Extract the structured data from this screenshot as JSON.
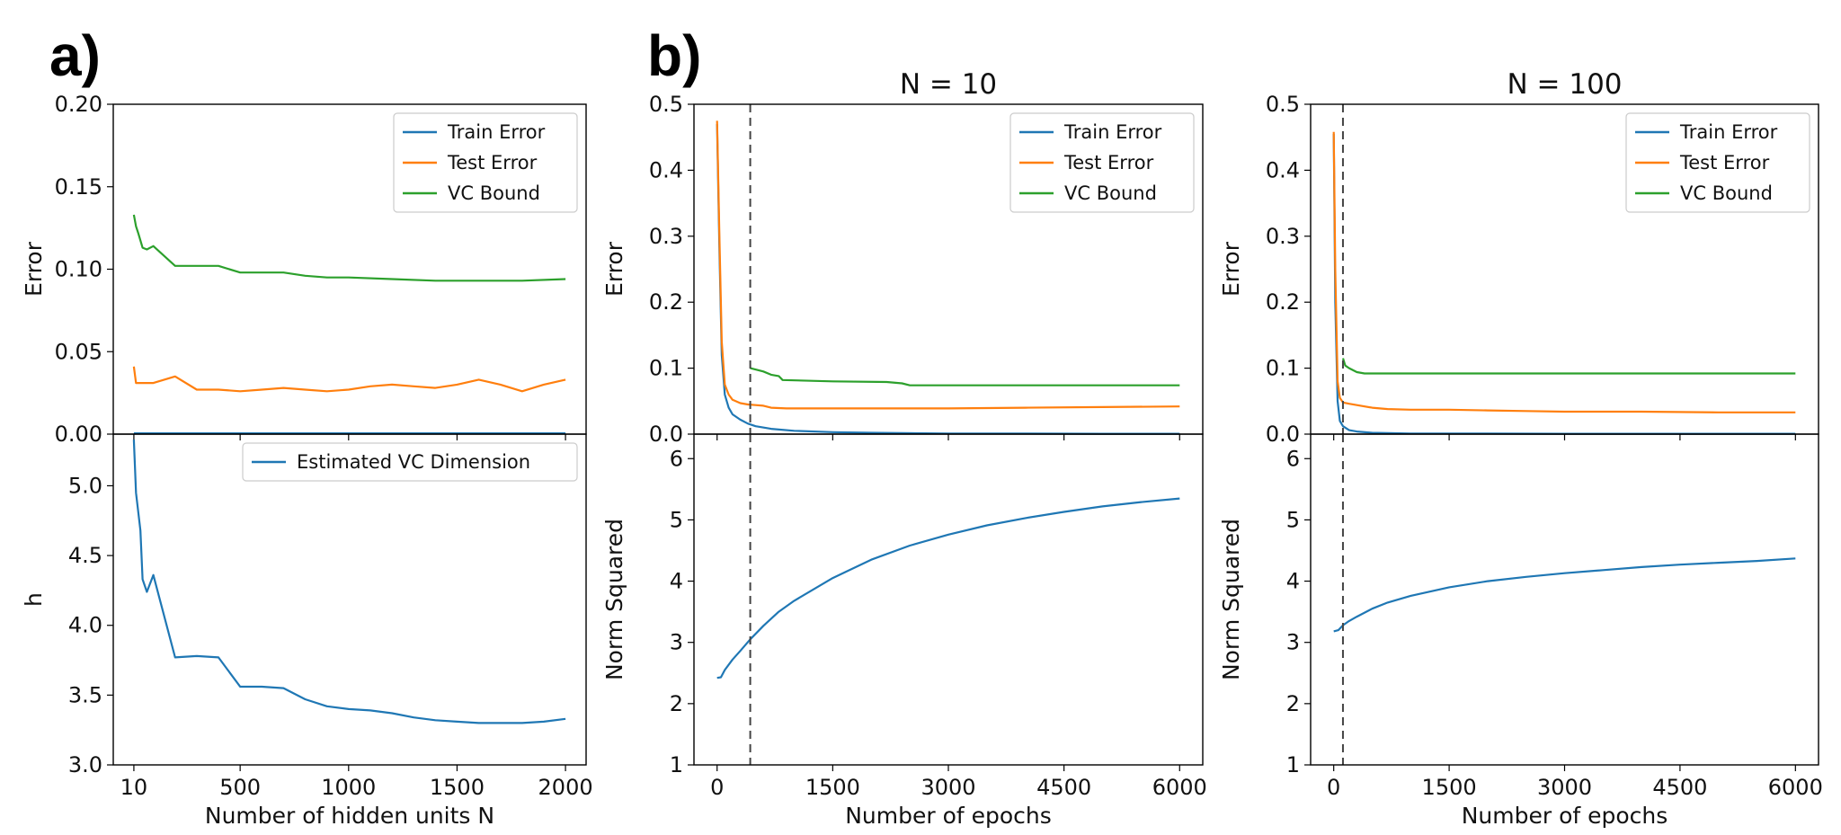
{
  "labels": {
    "panel_a": "a)",
    "panel_b": "b)"
  },
  "colors": {
    "train": "#1f77b4",
    "test": "#ff7f0e",
    "vc": "#2ca02c"
  },
  "chart_data": [
    {
      "id": "a_top",
      "type": "line",
      "title": "",
      "xlabel": "",
      "ylabel": "Error",
      "xlim": [
        -85,
        2095
      ],
      "ylim": [
        0.0,
        0.2
      ],
      "xticks": [
        10,
        500,
        1000,
        1500,
        2000
      ],
      "xtick_labels_shown": false,
      "yticks": [
        0.0,
        0.05,
        0.1,
        0.15,
        0.2
      ],
      "ytick_labels": [
        "0.00",
        "0.05",
        "0.10",
        "0.15",
        "0.20"
      ],
      "legend": "top-right",
      "series": [
        {
          "name": "Train Error",
          "color": "#1f77b4",
          "x": [
            10,
            2000
          ],
          "y": [
            0.0005,
            0.0005
          ]
        },
        {
          "name": "Test Error",
          "color": "#ff7f0e",
          "x": [
            10,
            20,
            50,
            100,
            200,
            300,
            400,
            500,
            600,
            700,
            800,
            900,
            1000,
            1100,
            1200,
            1300,
            1400,
            1500,
            1600,
            1700,
            1800,
            1900,
            2000
          ],
          "y": [
            0.041,
            0.031,
            0.031,
            0.031,
            0.035,
            0.027,
            0.027,
            0.026,
            0.027,
            0.028,
            0.027,
            0.026,
            0.027,
            0.029,
            0.03,
            0.029,
            0.028,
            0.03,
            0.033,
            0.03,
            0.026,
            0.03,
            0.033
          ]
        },
        {
          "name": "VC Bound",
          "color": "#2ca02c",
          "x": [
            10,
            20,
            30,
            50,
            70,
            100,
            200,
            300,
            400,
            500,
            700,
            800,
            900,
            1000,
            1200,
            1400,
            1600,
            1800,
            2000
          ],
          "y": [
            0.133,
            0.126,
            0.122,
            0.113,
            0.112,
            0.114,
            0.102,
            0.102,
            0.102,
            0.098,
            0.098,
            0.096,
            0.095,
            0.095,
            0.094,
            0.093,
            0.093,
            0.093,
            0.094
          ]
        }
      ]
    },
    {
      "id": "a_bottom",
      "type": "line",
      "title": "",
      "xlabel": "Number of hidden units N",
      "ylabel": "h",
      "xlim": [
        -85,
        2095
      ],
      "ylim": [
        3.0,
        5.37
      ],
      "xticks": [
        10,
        500,
        1000,
        1500,
        2000
      ],
      "xtick_labels": [
        "10",
        "500",
        "1000",
        "1500",
        "2000"
      ],
      "yticks": [
        3.0,
        3.5,
        4.0,
        4.5,
        5.0
      ],
      "ytick_labels": [
        "3.0",
        "3.5",
        "4.0",
        "4.5",
        "5.0"
      ],
      "legend": "top-right",
      "series": [
        {
          "name": "Estimated VC Dimension",
          "color": "#1f77b4",
          "x": [
            10,
            20,
            40,
            50,
            70,
            100,
            200,
            300,
            400,
            500,
            600,
            700,
            800,
            900,
            1000,
            1100,
            1200,
            1300,
            1400,
            1500,
            1600,
            1700,
            1800,
            1900,
            2000
          ],
          "y": [
            5.33,
            4.95,
            4.68,
            4.33,
            4.24,
            4.36,
            3.77,
            3.78,
            3.77,
            3.56,
            3.56,
            3.55,
            3.47,
            3.42,
            3.4,
            3.39,
            3.37,
            3.34,
            3.32,
            3.31,
            3.3,
            3.3,
            3.3,
            3.31,
            3.33
          ]
        }
      ]
    },
    {
      "id": "b10_top",
      "type": "line",
      "title": "N = 10",
      "xlabel": "",
      "ylabel": "Error",
      "xlim": [
        -300,
        6300
      ],
      "ylim": [
        0.0,
        0.5
      ],
      "xticks": [
        0,
        1500,
        3000,
        4500,
        6000
      ],
      "xtick_labels_shown": false,
      "yticks": [
        0.0,
        0.1,
        0.2,
        0.3,
        0.4,
        0.5
      ],
      "ytick_labels": [
        "0.0",
        "0.1",
        "0.2",
        "0.3",
        "0.4",
        "0.5"
      ],
      "vline_x": 430,
      "legend": "top-right",
      "series": [
        {
          "name": "Train Error",
          "color": "#1f77b4",
          "x": [
            0,
            30,
            60,
            100,
            150,
            200,
            300,
            400,
            500,
            700,
            1000,
            1500,
            2000,
            3000,
            4000,
            5000,
            6000
          ],
          "y": [
            0.47,
            0.28,
            0.12,
            0.06,
            0.04,
            0.03,
            0.022,
            0.016,
            0.012,
            0.008,
            0.005,
            0.003,
            0.002,
            0.001,
            0.0008,
            0.0006,
            0.0005
          ]
        },
        {
          "name": "Test Error",
          "color": "#ff7f0e",
          "x": [
            0,
            30,
            60,
            100,
            150,
            200,
            300,
            400,
            500,
            600,
            700,
            900,
            1200,
            1500,
            2000,
            3000,
            4000,
            5000,
            6000
          ],
          "y": [
            0.475,
            0.3,
            0.14,
            0.075,
            0.06,
            0.052,
            0.047,
            0.045,
            0.044,
            0.043,
            0.04,
            0.039,
            0.039,
            0.039,
            0.039,
            0.039,
            0.04,
            0.041,
            0.042
          ]
        },
        {
          "name": "VC Bound",
          "color": "#2ca02c",
          "x": [
            430,
            600,
            700,
            800,
            850,
            1500,
            2200,
            2400,
            2500,
            3000,
            4000,
            5000,
            6000
          ],
          "y": [
            0.1,
            0.095,
            0.09,
            0.088,
            0.082,
            0.08,
            0.079,
            0.077,
            0.074,
            0.074,
            0.074,
            0.074,
            0.074
          ]
        }
      ]
    },
    {
      "id": "b10_bottom",
      "type": "line",
      "title": "",
      "xlabel": "Number of epochs",
      "ylabel": "Norm Squared",
      "xlim": [
        -300,
        6300
      ],
      "ylim": [
        1.0,
        6.4
      ],
      "xticks": [
        0,
        1500,
        3000,
        4500,
        6000
      ],
      "xtick_labels": [
        "0",
        "1500",
        "3000",
        "4500",
        "6000"
      ],
      "yticks": [
        1,
        2,
        3,
        4,
        5,
        6
      ],
      "ytick_labels": [
        "1",
        "2",
        "3",
        "4",
        "5",
        "6"
      ],
      "vline_x": 430,
      "series": [
        {
          "name": "Norm Squared",
          "color": "#1f77b4",
          "x": [
            0,
            50,
            100,
            200,
            300,
            430,
            600,
            800,
            1000,
            1500,
            2000,
            2500,
            3000,
            3500,
            4000,
            4500,
            5000,
            5500,
            6000
          ],
          "y": [
            2.42,
            2.43,
            2.55,
            2.72,
            2.86,
            3.05,
            3.27,
            3.5,
            3.68,
            4.05,
            4.35,
            4.58,
            4.76,
            4.91,
            5.03,
            5.13,
            5.22,
            5.29,
            5.35
          ]
        }
      ]
    },
    {
      "id": "b100_top",
      "type": "line",
      "title": "N = 100",
      "xlabel": "",
      "ylabel": "Error",
      "xlim": [
        -300,
        6300
      ],
      "ylim": [
        0.0,
        0.5
      ],
      "xticks": [
        0,
        1500,
        3000,
        4500,
        6000
      ],
      "xtick_labels_shown": false,
      "yticks": [
        0.0,
        0.1,
        0.2,
        0.3,
        0.4,
        0.5
      ],
      "ytick_labels": [
        "0.0",
        "0.1",
        "0.2",
        "0.3",
        "0.4",
        "0.5"
      ],
      "vline_x": 120,
      "legend": "top-right",
      "series": [
        {
          "name": "Train Error",
          "color": "#1f77b4",
          "x": [
            0,
            20,
            50,
            80,
            120,
            200,
            300,
            500,
            1000,
            2000,
            3000,
            4500,
            6000
          ],
          "y": [
            0.455,
            0.2,
            0.05,
            0.02,
            0.012,
            0.006,
            0.004,
            0.002,
            0.001,
            0.0008,
            0.0006,
            0.0005,
            0.0005
          ]
        },
        {
          "name": "Test Error",
          "color": "#ff7f0e",
          "x": [
            0,
            20,
            50,
            80,
            120,
            200,
            300,
            500,
            700,
            1000,
            1500,
            2000,
            2500,
            3000,
            4000,
            5000,
            6000
          ],
          "y": [
            0.458,
            0.25,
            0.08,
            0.055,
            0.048,
            0.046,
            0.044,
            0.04,
            0.038,
            0.037,
            0.037,
            0.036,
            0.035,
            0.034,
            0.034,
            0.033,
            0.033
          ]
        },
        {
          "name": "VC Bound",
          "color": "#2ca02c",
          "x": [
            120,
            150,
            200,
            300,
            400,
            1000,
            2000,
            3000,
            4000,
            5000,
            6000
          ],
          "y": [
            0.115,
            0.104,
            0.1,
            0.094,
            0.092,
            0.092,
            0.092,
            0.092,
            0.092,
            0.092,
            0.092
          ]
        }
      ]
    },
    {
      "id": "b100_bottom",
      "type": "line",
      "title": "",
      "xlabel": "Number of epochs",
      "ylabel": "Norm Squared",
      "xlim": [
        -300,
        6300
      ],
      "ylim": [
        1.0,
        6.4
      ],
      "xticks": [
        0,
        1500,
        3000,
        4500,
        6000
      ],
      "xtick_labels": [
        "0",
        "1500",
        "3000",
        "4500",
        "6000"
      ],
      "yticks": [
        1,
        2,
        3,
        4,
        5,
        6
      ],
      "ytick_labels": [
        "1",
        "2",
        "3",
        "4",
        "5",
        "6"
      ],
      "vline_x": 120,
      "series": [
        {
          "name": "Norm Squared",
          "color": "#1f77b4",
          "x": [
            0,
            60,
            120,
            200,
            300,
            500,
            700,
            1000,
            1500,
            2000,
            2500,
            3000,
            3500,
            4000,
            4500,
            5000,
            5500,
            6000
          ],
          "y": [
            3.18,
            3.2,
            3.28,
            3.35,
            3.42,
            3.55,
            3.65,
            3.76,
            3.9,
            4.0,
            4.07,
            4.13,
            4.18,
            4.23,
            4.27,
            4.3,
            4.33,
            4.37
          ]
        }
      ]
    }
  ]
}
